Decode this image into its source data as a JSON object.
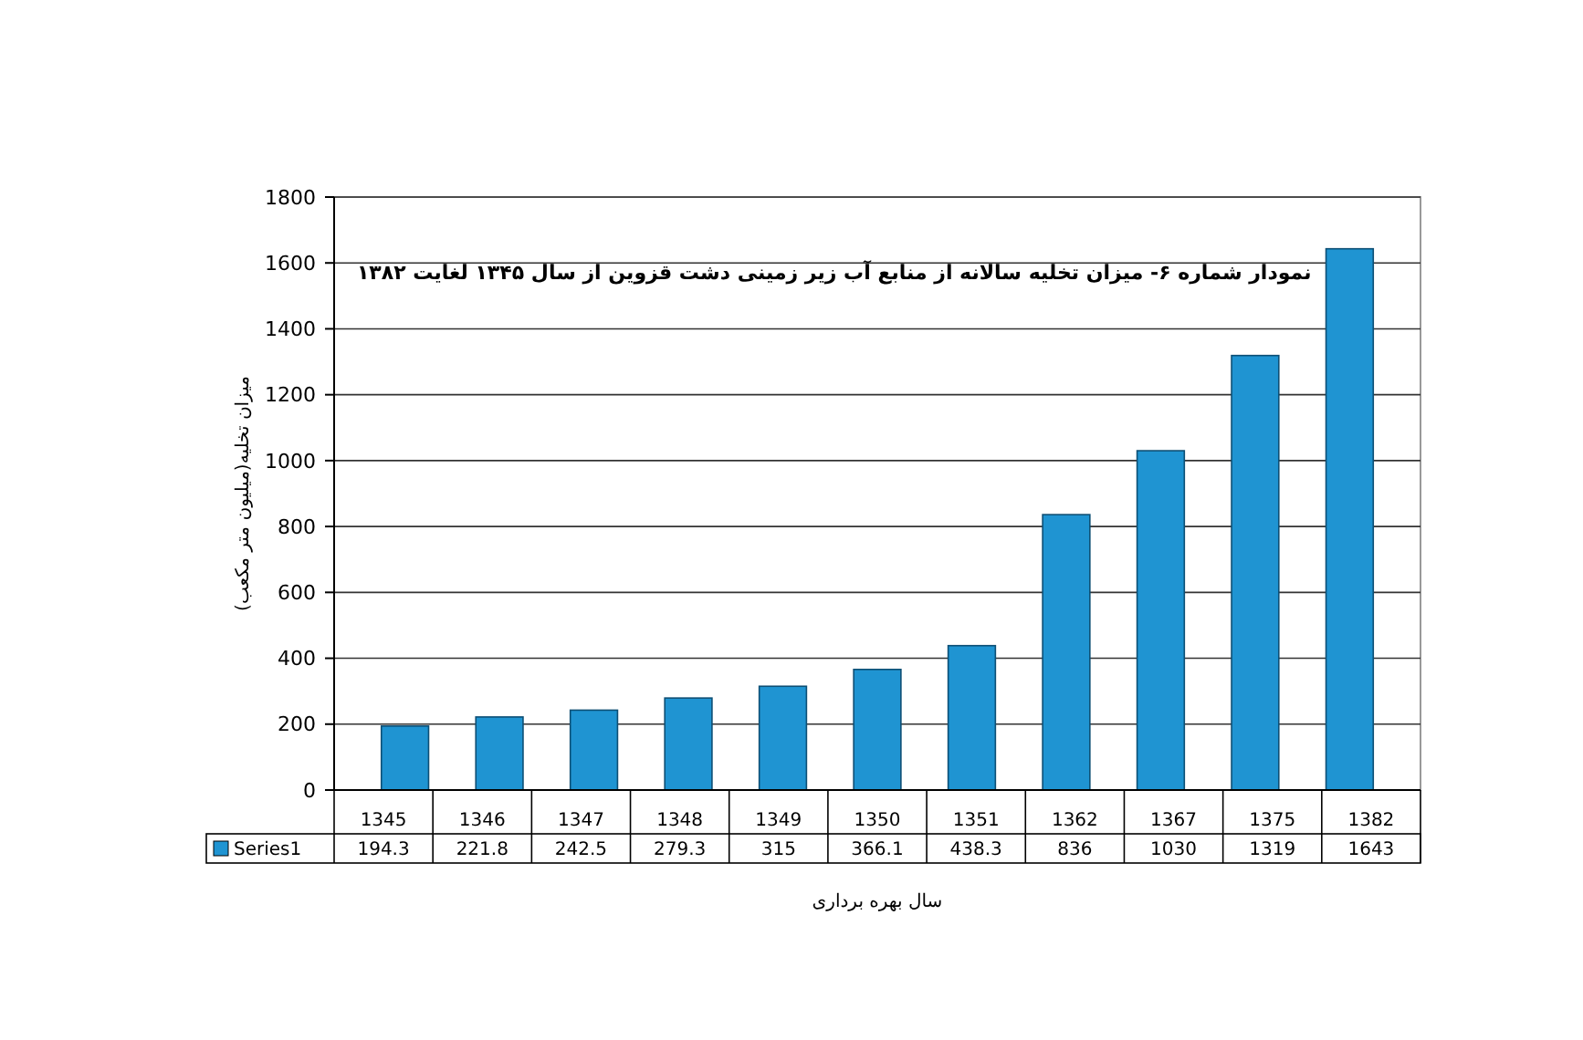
{
  "chart_data": {
    "type": "bar",
    "title": "نمودار شماره ۶- میزان تخلیه سالانه از منابع آب زیر زمینی دشت قزوین از سال ۱۳۴۵ لغایت ۱۳۸۲",
    "xlabel": "سال بهره برداری",
    "ylabel": "میزان تخلیه(میلیون متر مکعب)",
    "categories": [
      "1345",
      "1346",
      "1347",
      "1348",
      "1349",
      "1350",
      "1351",
      "1362",
      "1367",
      "1375",
      "1382"
    ],
    "series": [
      {
        "name": "Series1",
        "color": "#1f94d2",
        "values": [
          194.3,
          221.8,
          242.5,
          279.3,
          315,
          366.1,
          438.3,
          836,
          1030,
          1319,
          1643
        ]
      }
    ],
    "ylim": [
      0,
      1800
    ],
    "yticks": [
      0,
      200,
      400,
      600,
      800,
      1000,
      1200,
      1400,
      1600,
      1800
    ],
    "grid": "y",
    "legend": "bottom left",
    "data_labels": true
  }
}
